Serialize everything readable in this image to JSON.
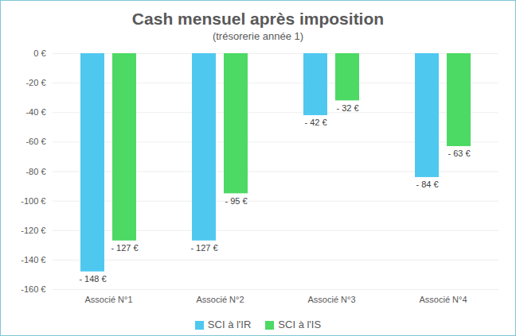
{
  "chart_data": {
    "type": "bar",
    "title": "Cash mensuel après imposition",
    "subtitle": "(trésorerie année 1)",
    "categories": [
      "Associé N°1",
      "Associé N°2",
      "Associé N°3",
      "Associé N°4"
    ],
    "series": [
      {
        "name": "SCI à l'IR",
        "color": "#4fc8f0",
        "values": [
          -148,
          -127,
          -42,
          -84
        ],
        "value_labels": [
          "- 148 €",
          "- 127 €",
          "- 42 €",
          "- 84 €"
        ]
      },
      {
        "name": "SCI à l'IS",
        "color": "#4cd964",
        "values": [
          -127,
          -95,
          -32,
          -63
        ],
        "value_labels": [
          "- 127 €",
          "- 95 €",
          "- 32 €",
          "- 63 €"
        ]
      }
    ],
    "ylim": [
      -160,
      0
    ],
    "yticks": [
      {
        "value": 0,
        "label": "0 €"
      },
      {
        "value": -20,
        "label": "-20 €"
      },
      {
        "value": -40,
        "label": "-40 €"
      },
      {
        "value": -60,
        "label": "-60 €"
      },
      {
        "value": -80,
        "label": "-80 €"
      },
      {
        "value": -100,
        "label": "-100 €"
      },
      {
        "value": -120,
        "label": "-120 €"
      },
      {
        "value": -140,
        "label": "-140 €"
      },
      {
        "value": -160,
        "label": "-160 €"
      }
    ],
    "grid": true,
    "legend": "bottom",
    "data_labels": true
  }
}
